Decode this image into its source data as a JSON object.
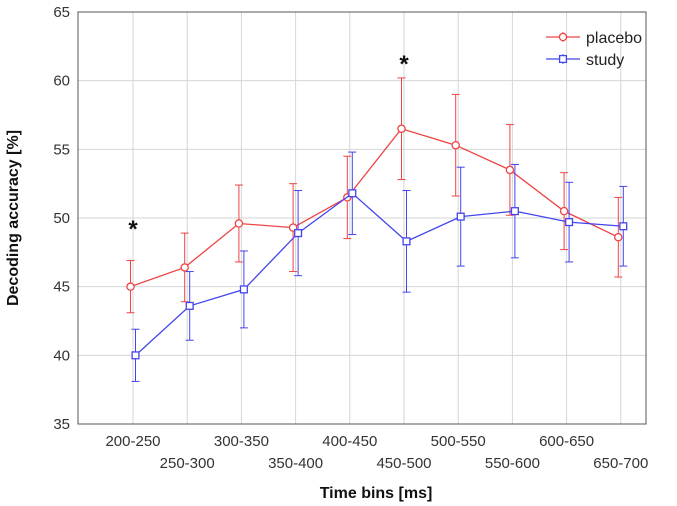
{
  "chart_data": {
    "type": "line",
    "title": "",
    "xlabel": "Time bins [ms]",
    "ylabel": "Decoding accuracy [%]",
    "ylim": [
      35,
      65
    ],
    "yticks": [
      35,
      40,
      45,
      50,
      55,
      60,
      65
    ],
    "grid": true,
    "legend_position": "top-right",
    "categories": [
      "200-250",
      "250-300",
      "300-350",
      "350-400",
      "400-450",
      "450-500",
      "500-550",
      "550-600",
      "600-650",
      "650-700"
    ],
    "series": [
      {
        "name": "placebo",
        "color": "#ee4444",
        "marker": "circle",
        "values": [
          45.0,
          46.4,
          49.6,
          49.3,
          51.5,
          56.5,
          55.3,
          53.5,
          50.5,
          48.6
        ],
        "errors": [
          1.9,
          2.5,
          2.8,
          3.2,
          3.0,
          3.7,
          3.7,
          3.3,
          2.8,
          2.9
        ]
      },
      {
        "name": "study",
        "color": "#4444ee",
        "marker": "square",
        "values": [
          40.0,
          43.6,
          44.8,
          48.9,
          51.8,
          48.3,
          50.1,
          50.5,
          49.7,
          49.4
        ],
        "errors": [
          1.9,
          2.5,
          2.8,
          3.1,
          3.0,
          3.7,
          3.6,
          3.4,
          2.9,
          2.9
        ]
      }
    ],
    "annotations": [
      {
        "text": "*",
        "category": "200-250",
        "y": 49.5
      },
      {
        "text": "*",
        "category": "450-500",
        "y": 61.5
      }
    ]
  }
}
